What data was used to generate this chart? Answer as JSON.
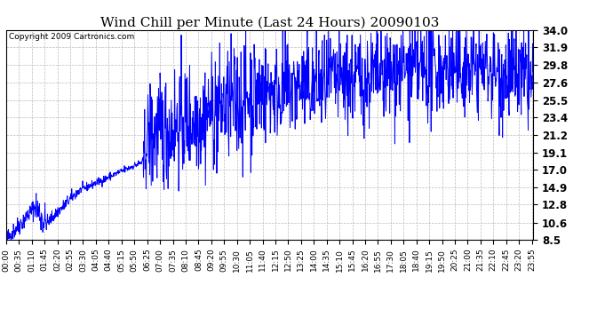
{
  "title": "Wind Chill per Minute (Last 24 Hours) 20090103",
  "copyright": "Copyright 2009 Cartronics.com",
  "line_color": "#0000ff",
  "bg_color": "#ffffff",
  "grid_color": "#bbbbbb",
  "yticks": [
    8.5,
    10.6,
    12.8,
    14.9,
    17.0,
    19.1,
    21.2,
    23.4,
    25.5,
    27.6,
    29.8,
    31.9,
    34.0
  ],
  "ylim": [
    8.5,
    34.0
  ],
  "xtick_interval_minutes": 35,
  "total_minutes": 1440,
  "xlabel_fontsize": 6.5,
  "ylabel_fontsize": 8.5,
  "title_fontsize": 11
}
